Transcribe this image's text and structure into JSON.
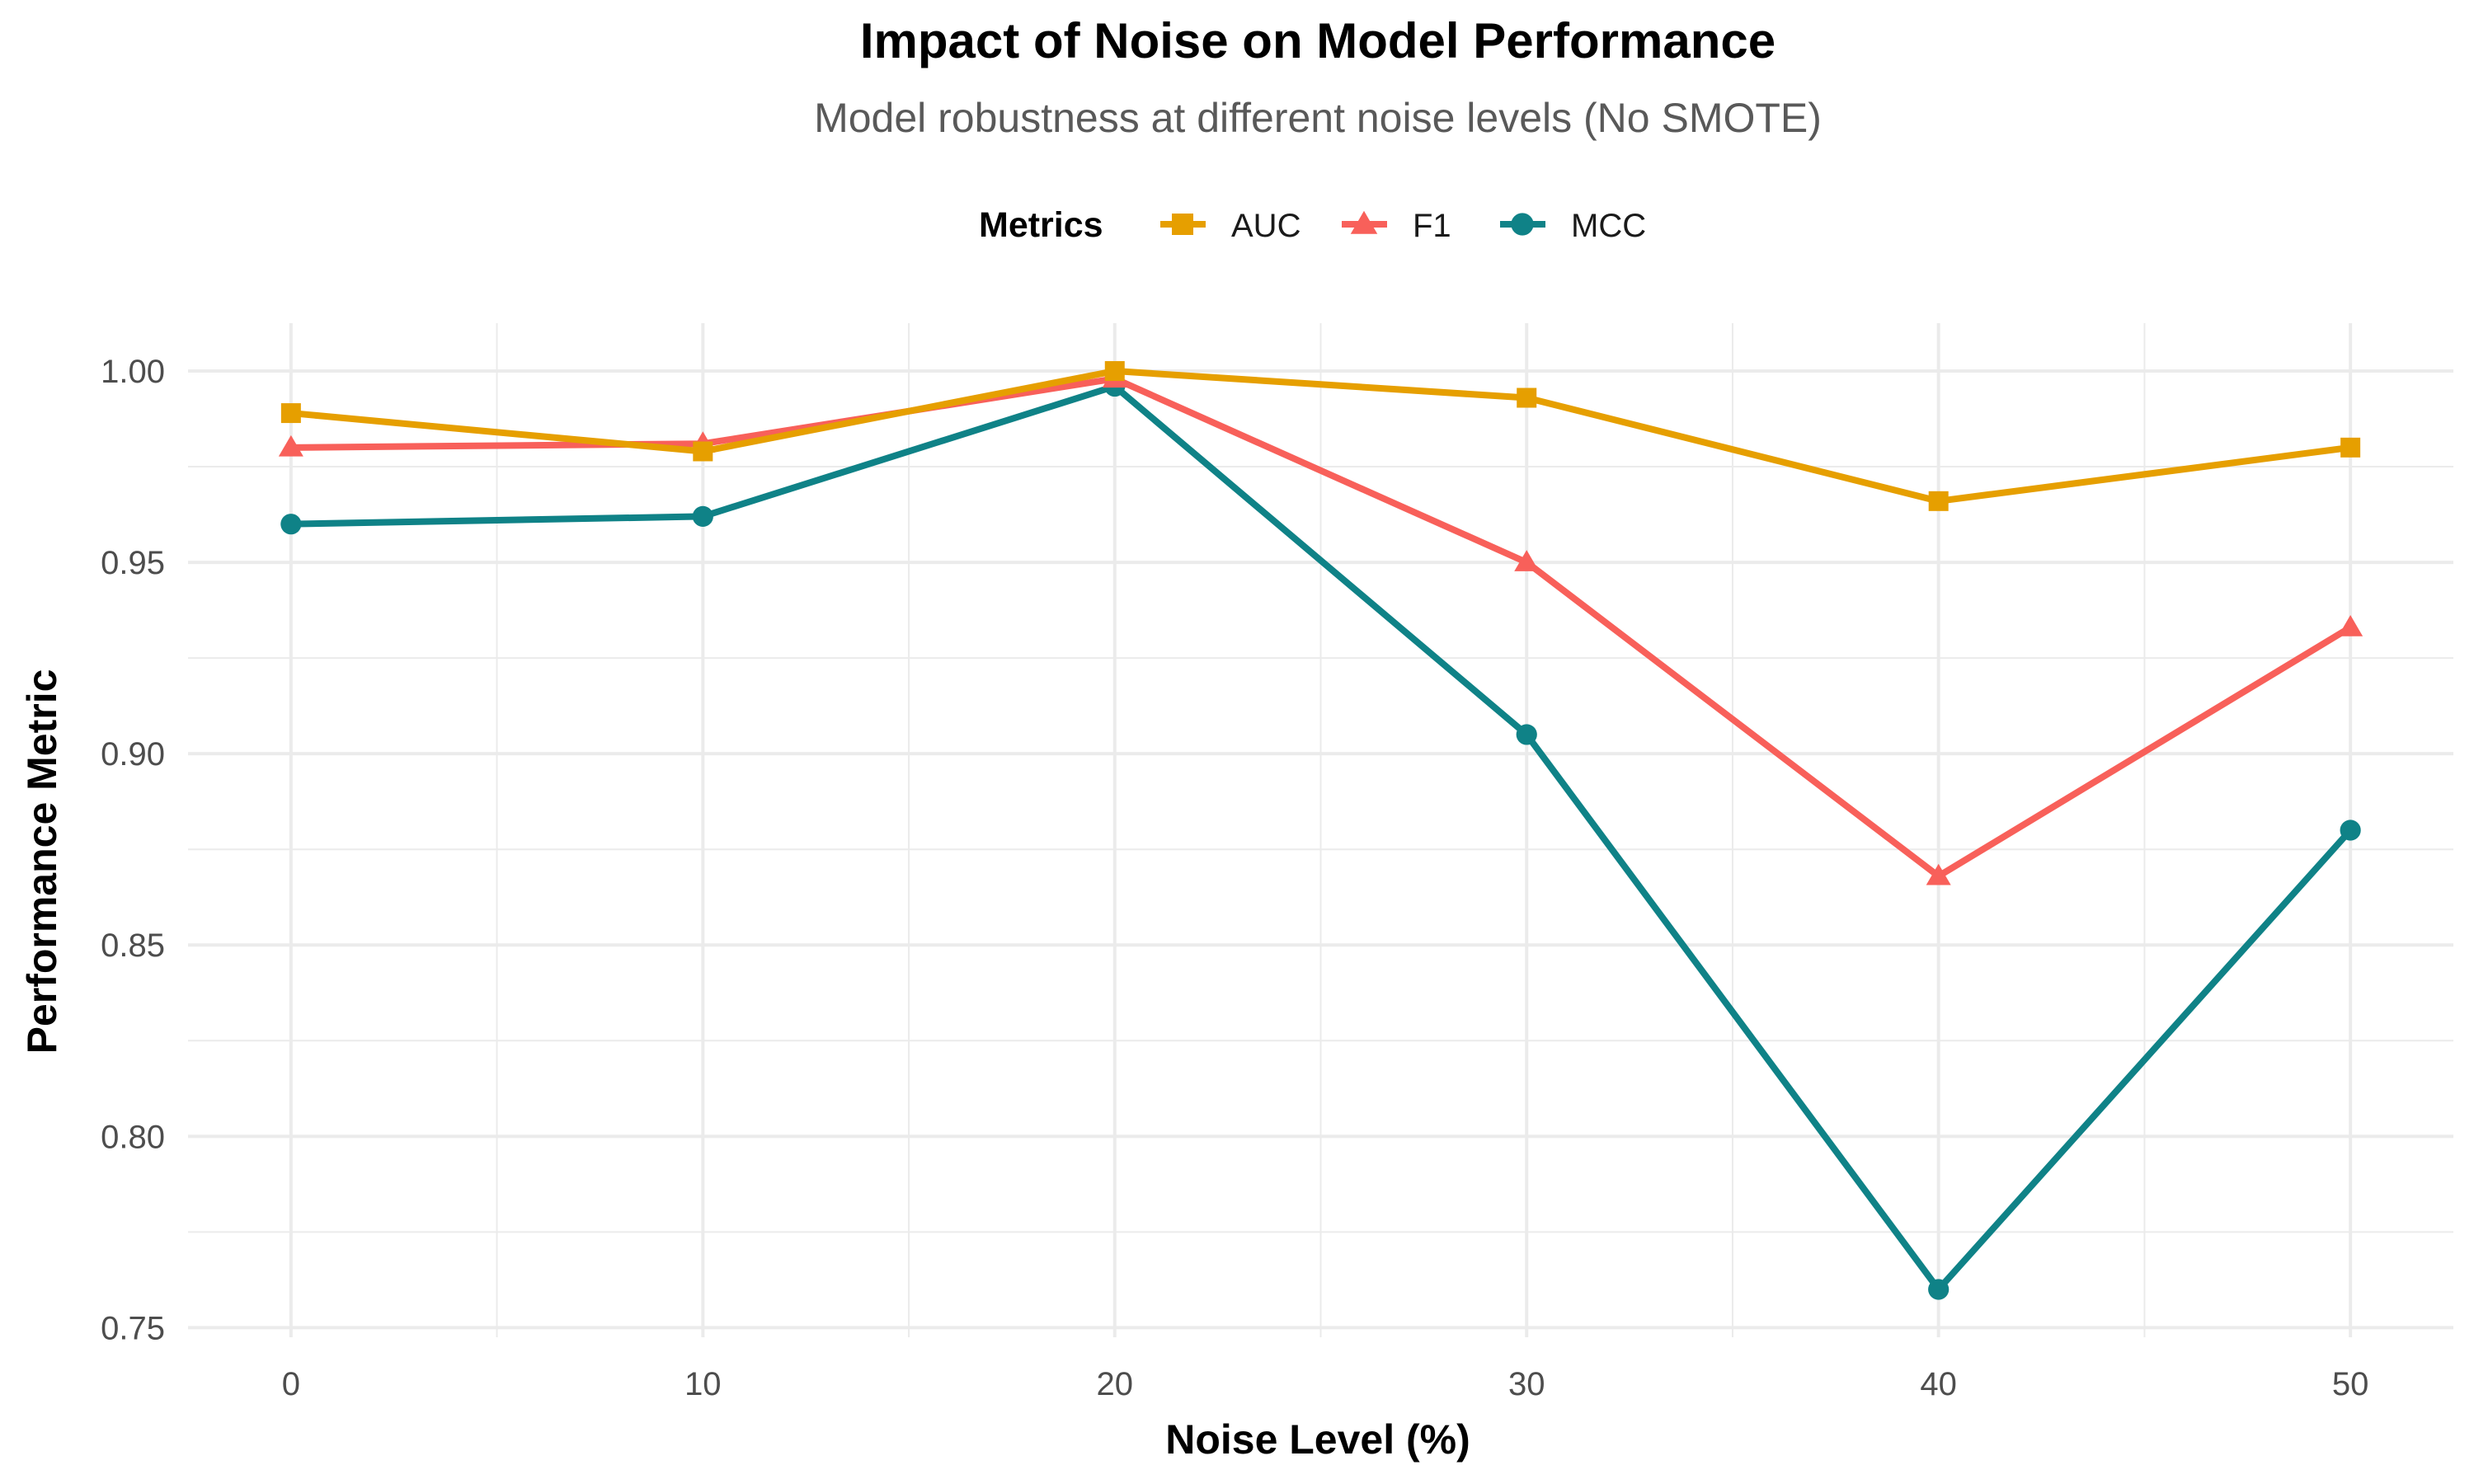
{
  "chart_data": {
    "type": "line",
    "title": "Impact of Noise on Model Performance",
    "subtitle": "Model robustness at different noise levels (No SMOTE)",
    "xlabel": "Noise Level (%)",
    "ylabel": "Performance Metric",
    "x": [
      0,
      10,
      20,
      30,
      40,
      50
    ],
    "xticks": [
      "0",
      "10",
      "20",
      "30",
      "40",
      "50"
    ],
    "yticks": [
      "0.75",
      "0.80",
      "0.85",
      "0.90",
      "0.95",
      "1.00"
    ],
    "xlim": [
      -2.5,
      52.5
    ],
    "ylim": [
      0.75,
      1.0
    ],
    "grid": true,
    "legend": {
      "title": "Metrics",
      "placement": "top"
    },
    "series": [
      {
        "name": "AUC",
        "color": "#E69F00",
        "marker": "square",
        "values": [
          0.989,
          0.979,
          1.0,
          0.993,
          0.966,
          0.98
        ]
      },
      {
        "name": "F1",
        "color": "#F8605A",
        "marker": "triangle",
        "values": [
          0.98,
          0.981,
          0.998,
          0.95,
          0.868,
          0.933
        ]
      },
      {
        "name": "MCC",
        "color": "#0F8287",
        "marker": "circle",
        "values": [
          0.96,
          0.962,
          0.996,
          0.905,
          0.76,
          0.88
        ]
      }
    ]
  }
}
